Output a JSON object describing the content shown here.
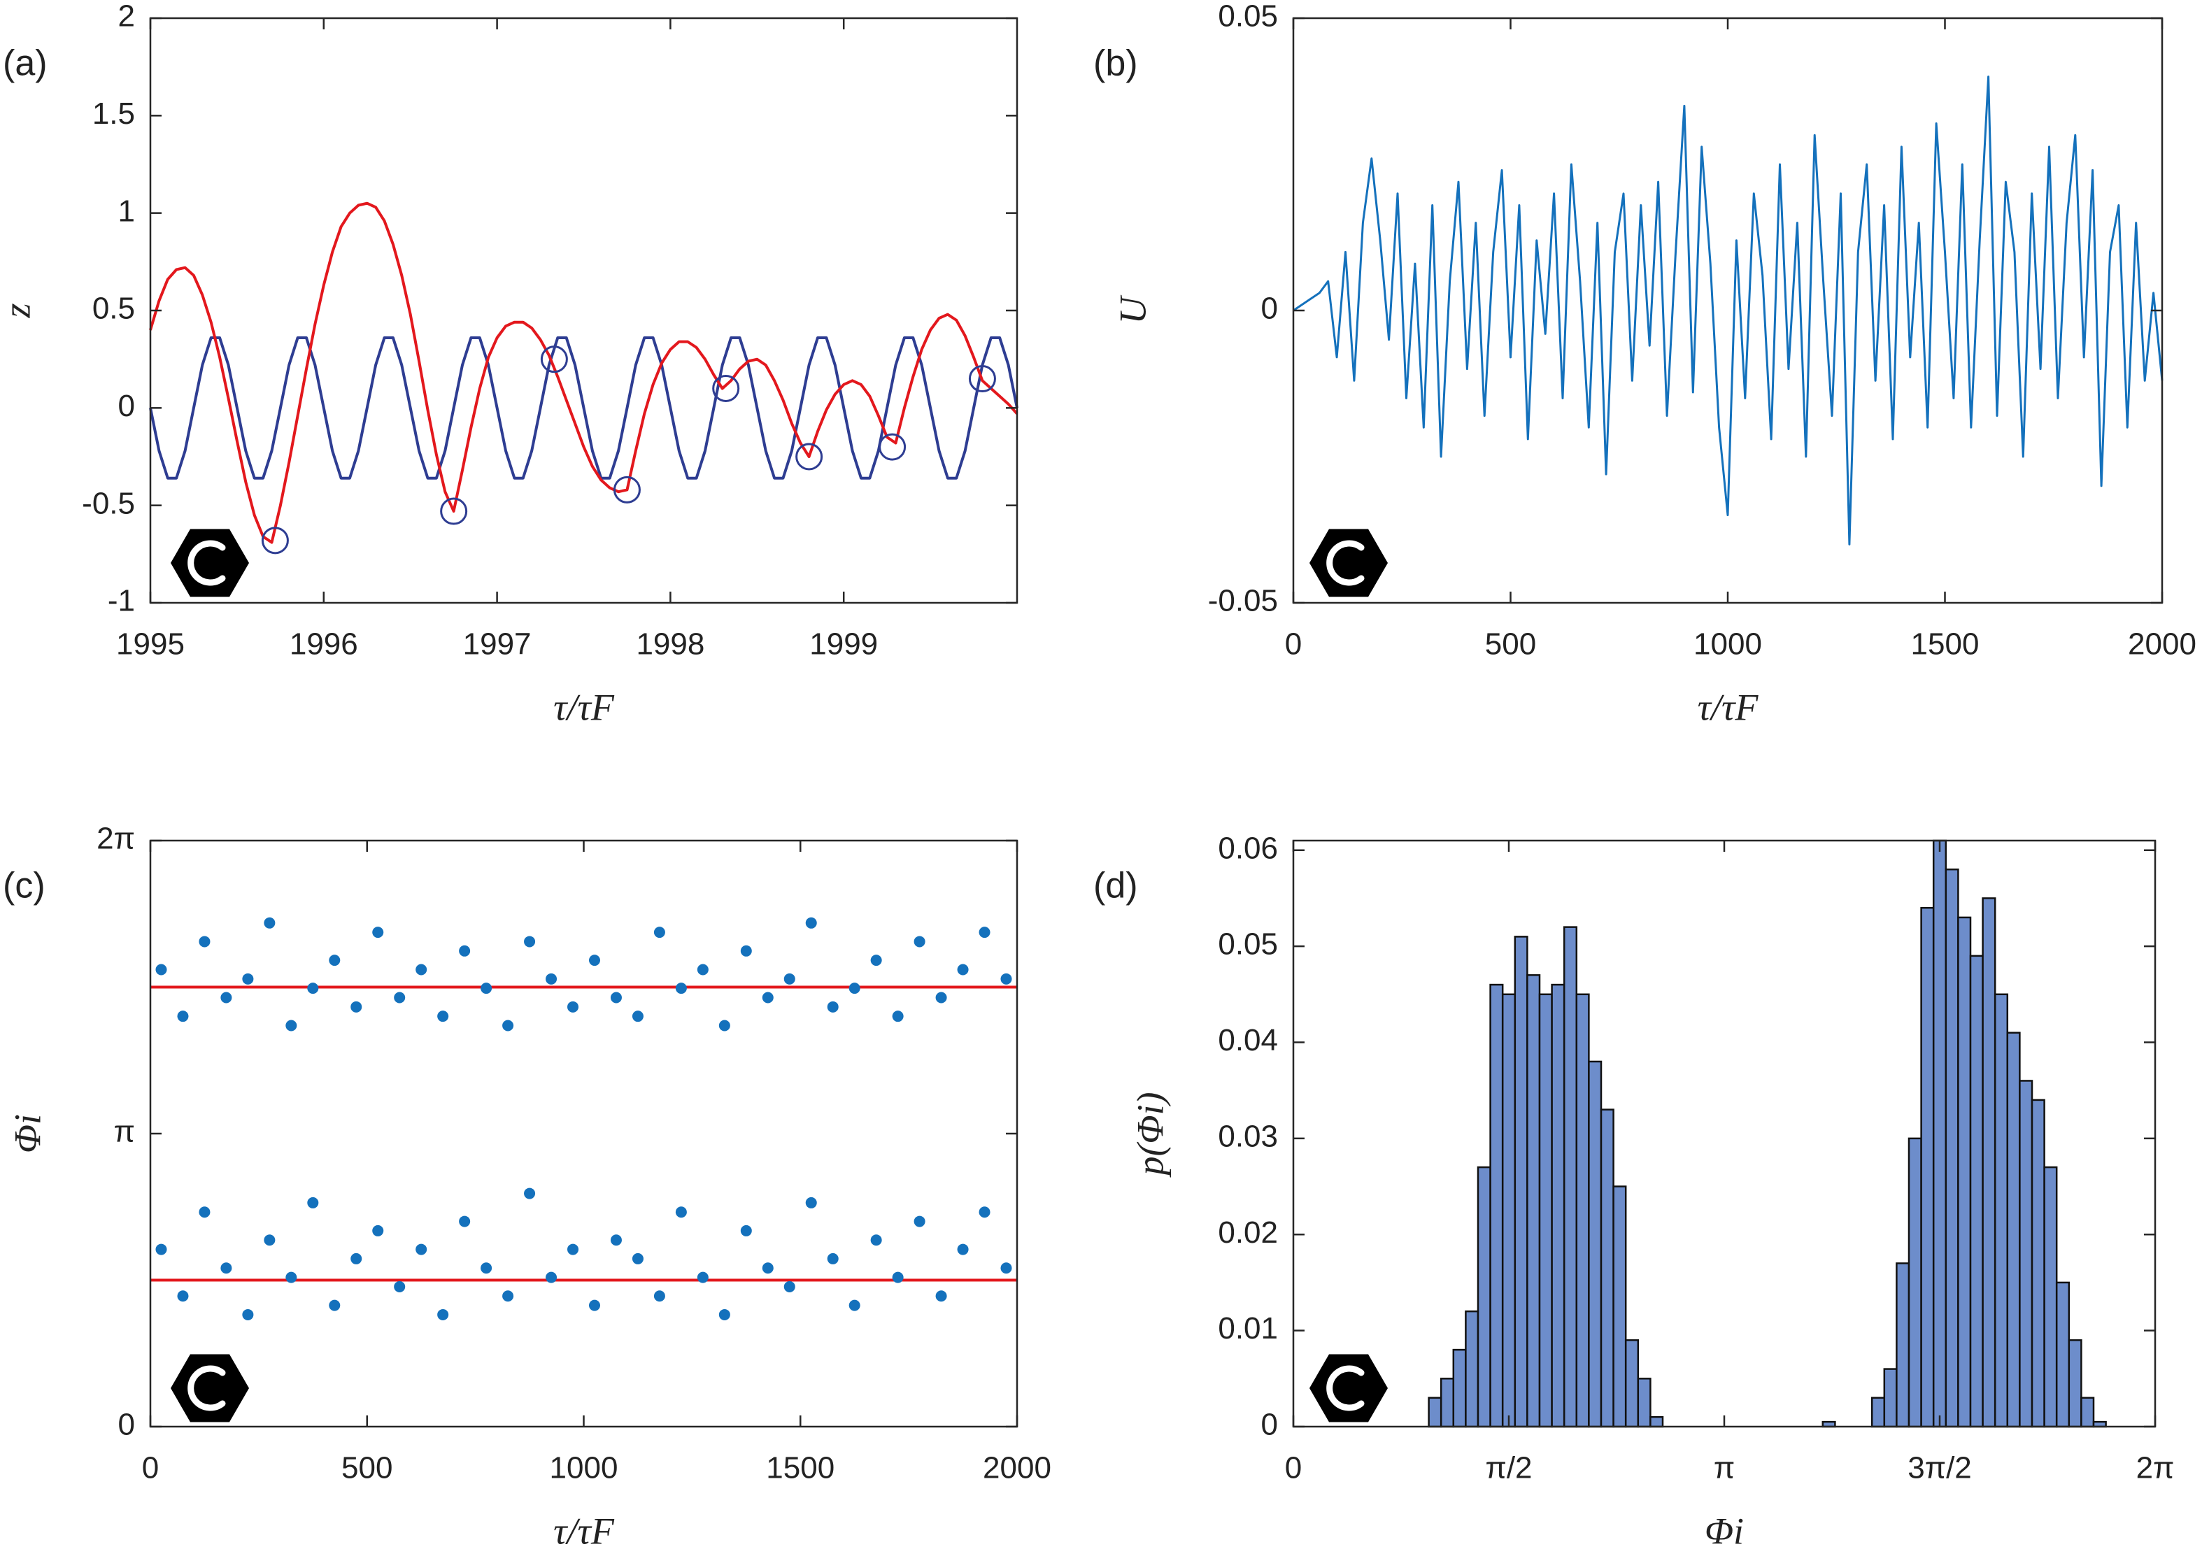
{
  "chart_data": [
    {
      "type": "line",
      "panel_label": "(a)",
      "xlabel": "τ/τF",
      "ylabel": "z",
      "xlim": [
        1995,
        2000
      ],
      "ylim": [
        -1,
        2
      ],
      "xticks": [
        1995,
        1996,
        1997,
        1998,
        1999
      ],
      "yticks": [
        -1,
        -0.5,
        0,
        0.5,
        1,
        1.5,
        2
      ],
      "x": [
        1995,
        1995.05,
        1995.1,
        1995.15,
        1995.2,
        1995.25,
        1995.3,
        1995.35,
        1995.4,
        1995.45,
        1995.5,
        1995.55,
        1995.6,
        1995.65,
        1995.7,
        1995.75,
        1995.8,
        1995.85,
        1995.9,
        1995.95,
        1996,
        1996.05,
        1996.1,
        1996.15,
        1996.2,
        1996.25,
        1996.3,
        1996.35,
        1996.4,
        1996.45,
        1996.5,
        1996.55,
        1996.6,
        1996.65,
        1996.7,
        1996.75,
        1996.8,
        1996.85,
        1996.9,
        1996.95,
        1997,
        1997.05,
        1997.1,
        1997.15,
        1997.2,
        1997.25,
        1997.3,
        1997.35,
        1997.4,
        1997.45,
        1997.5,
        1997.55,
        1997.6,
        1997.65,
        1997.7,
        1997.75,
        1997.8,
        1997.85,
        1997.9,
        1997.95,
        1998,
        1998.05,
        1998.1,
        1998.15,
        1998.2,
        1998.25,
        1998.3,
        1998.35,
        1998.4,
        1998.45,
        1998.5,
        1998.55,
        1998.6,
        1998.65,
        1998.7,
        1998.75,
        1998.8,
        1998.85,
        1998.9,
        1998.95,
        1999,
        1999.05,
        1999.1,
        1999.15,
        1999.2,
        1999.25,
        1999.3,
        1999.35,
        1999.4,
        1999.45,
        1999.5,
        1999.55,
        1999.6,
        1999.65,
        1999.7,
        1999.75,
        1999.8,
        1999.85,
        1999.9,
        1999.95,
        2000
      ],
      "series": [
        {
          "color": "#2e3d92",
          "values": [
            0,
            -0.22,
            -0.36,
            -0.36,
            -0.22,
            0,
            0.22,
            0.36,
            0.36,
            0.22,
            0,
            -0.22,
            -0.36,
            -0.36,
            -0.22,
            0,
            0.22,
            0.36,
            0.36,
            0.22,
            0,
            -0.22,
            -0.36,
            -0.36,
            -0.22,
            0,
            0.22,
            0.36,
            0.36,
            0.22,
            0,
            -0.22,
            -0.36,
            -0.36,
            -0.22,
            0,
            0.22,
            0.36,
            0.36,
            0.22,
            0,
            -0.22,
            -0.36,
            -0.36,
            -0.22,
            0,
            0.22,
            0.36,
            0.36,
            0.22,
            0,
            -0.22,
            -0.36,
            -0.36,
            -0.22,
            0,
            0.22,
            0.36,
            0.36,
            0.22,
            0,
            -0.22,
            -0.36,
            -0.36,
            -0.22,
            0,
            0.22,
            0.36,
            0.36,
            0.22,
            0,
            -0.22,
            -0.36,
            -0.36,
            -0.22,
            0,
            0.22,
            0.36,
            0.36,
            0.22,
            0,
            -0.22,
            -0.36,
            -0.36,
            -0.22,
            0,
            0.22,
            0.36,
            0.36,
            0.22,
            0,
            -0.22,
            -0.36,
            -0.36,
            -0.22,
            0,
            0.22,
            0.36,
            0.36,
            0.22,
            0
          ]
        },
        {
          "color": "#e3181d",
          "values": [
            0.4,
            0.55,
            0.66,
            0.71,
            0.72,
            0.68,
            0.58,
            0.44,
            0.26,
            0.05,
            -0.17,
            -0.38,
            -0.55,
            -0.66,
            -0.69,
            -0.5,
            -0.28,
            -0.04,
            0.2,
            0.43,
            0.63,
            0.8,
            0.93,
            1.0,
            1.04,
            1.05,
            1.03,
            0.96,
            0.84,
            0.68,
            0.48,
            0.24,
            -0.01,
            -0.24,
            -0.43,
            -0.53,
            -0.32,
            -0.1,
            0.1,
            0.26,
            0.36,
            0.42,
            0.44,
            0.44,
            0.41,
            0.35,
            0.27,
            0.16,
            0.04,
            -0.08,
            -0.2,
            -0.3,
            -0.37,
            -0.41,
            -0.43,
            -0.42,
            -0.22,
            -0.03,
            0.12,
            0.23,
            0.3,
            0.34,
            0.34,
            0.31,
            0.25,
            0.17,
            0.1,
            0.14,
            0.2,
            0.24,
            0.25,
            0.22,
            0.14,
            0.04,
            -0.08,
            -0.18,
            -0.25,
            -0.12,
            -0.01,
            0.07,
            0.12,
            0.14,
            0.12,
            0.06,
            -0.04,
            -0.15,
            -0.18,
            0.0,
            0.16,
            0.3,
            0.4,
            0.46,
            0.48,
            0.45,
            0.37,
            0.26,
            0.14,
            0.1,
            0.06,
            0.02,
            -0.03
          ]
        },
        {
          "color": "#2e3d92",
          "marker": "circle",
          "x": [
            1995.72,
            1996.75,
            1997.33,
            1997.75,
            1998.32,
            1998.8,
            1999.28,
            1999.8
          ],
          "values": [
            -0.68,
            -0.53,
            0.25,
            -0.42,
            0.1,
            -0.25,
            -0.2,
            0.15
          ]
        }
      ]
    },
    {
      "type": "line",
      "panel_label": "(b)",
      "xlabel": "τ/τF",
      "ylabel": "U",
      "xlim": [
        0,
        2000
      ],
      "ylim": [
        -0.05,
        0.05
      ],
      "xticks": [
        0,
        500,
        1000,
        1500,
        2000
      ],
      "yticks": [
        -0.05,
        0,
        0.05
      ],
      "x": [
        0,
        20,
        40,
        60,
        80,
        100,
        120,
        140,
        160,
        180,
        200,
        220,
        240,
        260,
        280,
        300,
        320,
        340,
        360,
        380,
        400,
        420,
        440,
        460,
        480,
        500,
        520,
        540,
        560,
        580,
        600,
        620,
        640,
        660,
        680,
        700,
        720,
        740,
        760,
        780,
        800,
        820,
        840,
        860,
        880,
        900,
        920,
        940,
        960,
        980,
        1000,
        1020,
        1040,
        1060,
        1080,
        1100,
        1120,
        1140,
        1160,
        1180,
        1200,
        1220,
        1240,
        1260,
        1280,
        1300,
        1320,
        1340,
        1360,
        1380,
        1400,
        1420,
        1440,
        1460,
        1480,
        1500,
        1520,
        1540,
        1560,
        1580,
        1600,
        1620,
        1640,
        1660,
        1680,
        1700,
        1720,
        1740,
        1760,
        1780,
        1800,
        1820,
        1840,
        1860,
        1880,
        1900,
        1920,
        1940,
        1960,
        1980,
        2000
      ],
      "series": [
        {
          "color": "#1471bc",
          "values": [
            0,
            0.001,
            0.002,
            0.003,
            0.005,
            -0.008,
            0.01,
            -0.012,
            0.015,
            0.026,
            0.012,
            -0.005,
            0.02,
            -0.015,
            0.008,
            -0.02,
            0.018,
            -0.025,
            0.005,
            0.022,
            -0.01,
            0.015,
            -0.018,
            0.01,
            0.024,
            -0.008,
            0.018,
            -0.022,
            0.012,
            -0.004,
            0.02,
            -0.015,
            0.025,
            0.005,
            -0.02,
            0.015,
            -0.028,
            0.01,
            0.02,
            -0.012,
            0.018,
            -0.006,
            0.022,
            -0.018,
            0.01,
            0.035,
            -0.014,
            0.028,
            0.008,
            -0.02,
            -0.035,
            0.012,
            -0.015,
            0.02,
            0.006,
            -0.022,
            0.025,
            -0.01,
            0.015,
            -0.025,
            0.03,
            0.005,
            -0.018,
            0.02,
            -0.04,
            0.01,
            0.025,
            -0.012,
            0.018,
            -0.022,
            0.028,
            -0.008,
            0.015,
            -0.02,
            0.032,
            0.01,
            -0.015,
            0.025,
            -0.02,
            0.012,
            0.04,
            -0.018,
            0.022,
            0.01,
            -0.025,
            0.02,
            -0.01,
            0.028,
            -0.015,
            0.015,
            0.03,
            -0.008,
            0.024,
            -0.03,
            0.01,
            0.018,
            -0.02,
            0.015,
            -0.012,
            0.003,
            -0.012
          ]
        }
      ]
    },
    {
      "type": "scatter",
      "panel_label": "(c)",
      "xlabel": "τ/τF",
      "ylabel": "Φi",
      "xlim": [
        0,
        2000
      ],
      "ylim": [
        0,
        6.2832
      ],
      "xticks": [
        0,
        500,
        1000,
        1500,
        2000
      ],
      "yticks": [
        0,
        {
          "value": 3.1416,
          "label": "π"
        },
        {
          "value": 6.2832,
          "label": "2π"
        }
      ],
      "hlines": [
        {
          "value": 1.5708,
          "color": "#e3181d"
        },
        {
          "value": 4.7124,
          "color": "#e3181d"
        }
      ],
      "x": [
        25,
        75,
        125,
        175,
        225,
        275,
        325,
        375,
        425,
        475,
        525,
        575,
        625,
        675,
        725,
        775,
        825,
        875,
        925,
        975,
        1025,
        1075,
        1125,
        1175,
        1225,
        1275,
        1325,
        1375,
        1425,
        1475,
        1525,
        1575,
        1625,
        1675,
        1725,
        1775,
        1825,
        1875,
        1925,
        1975
      ],
      "series": [
        {
          "color": "#1471bc",
          "values": [
            4.9,
            4.4,
            5.2,
            4.6,
            4.8,
            5.4,
            4.3,
            4.7,
            5.0,
            4.5,
            5.3,
            4.6,
            4.9,
            4.4,
            5.1,
            4.7,
            4.3,
            5.2,
            4.8,
            4.5,
            5.0,
            4.6,
            4.4,
            5.3,
            4.7,
            4.9,
            4.3,
            5.1,
            4.6,
            4.8,
            5.4,
            4.5,
            4.7,
            5.0,
            4.4,
            5.2,
            4.6,
            4.9,
            5.3,
            4.8
          ]
        },
        {
          "color": "#1471bc",
          "values": [
            1.9,
            1.4,
            2.3,
            1.7,
            1.2,
            2.0,
            1.6,
            2.4,
            1.3,
            1.8,
            2.1,
            1.5,
            1.9,
            1.2,
            2.2,
            1.7,
            1.4,
            2.5,
            1.6,
            1.9,
            1.3,
            2.0,
            1.8,
            1.4,
            2.3,
            1.6,
            1.2,
            2.1,
            1.7,
            1.5,
            2.4,
            1.8,
            1.3,
            2.0,
            1.6,
            2.2,
            1.4,
            1.9,
            2.3,
            1.7
          ]
        }
      ]
    },
    {
      "type": "histogram",
      "panel_label": "(d)",
      "xlabel": "Φi",
      "ylabel": "p(Φi)",
      "color": "#6d8dcb",
      "xlim": [
        0,
        6.2832
      ],
      "ylim": [
        0,
        0.061
      ],
      "xticks": [
        0,
        {
          "value": 1.5708,
          "label": "π/2"
        },
        {
          "value": 3.1416,
          "label": "π"
        },
        {
          "value": 4.7124,
          "label": "3π/2"
        },
        {
          "value": 6.2832,
          "label": "2π"
        }
      ],
      "yticks": [
        0,
        0.01,
        0.02,
        0.03,
        0.04,
        0.05,
        0.06
      ],
      "bins": [
        0,
        0.0898,
        0.1795,
        0.2693,
        0.359,
        0.4488,
        0.5386,
        0.6283,
        0.7181,
        0.8078,
        0.8976,
        0.9874,
        1.0771,
        1.1669,
        1.2566,
        1.3464,
        1.4362,
        1.5259,
        1.6157,
        1.7054,
        1.7952,
        1.885,
        1.9747,
        2.0645,
        2.1542,
        2.244,
        2.3338,
        2.4235,
        2.5133,
        2.603,
        2.6928,
        2.7826,
        2.8723,
        2.9621,
        3.0518,
        3.1416,
        3.2314,
        3.3211,
        3.4109,
        3.5006,
        3.5904,
        3.6802,
        3.7699,
        3.8597,
        3.9494,
        4.0392,
        4.129,
        4.2187,
        4.3085,
        4.3982,
        4.488,
        4.5778,
        4.6675,
        4.7573,
        4.847,
        4.9368,
        5.0265,
        5.1163,
        5.2061,
        5.2958,
        5.3856,
        5.4754,
        5.5651,
        5.6549,
        5.7446,
        5.8344,
        5.9242,
        6.0139,
        6.1037,
        6.1934,
        6.2832
      ],
      "values": [
        0,
        0,
        0,
        0,
        0,
        0,
        0,
        0,
        0,
        0,
        0,
        0.003,
        0.005,
        0.008,
        0.012,
        0.027,
        0.046,
        0.045,
        0.051,
        0.047,
        0.045,
        0.046,
        0.052,
        0.045,
        0.038,
        0.033,
        0.025,
        0.009,
        0.005,
        0.001,
        0,
        0,
        0,
        0,
        0,
        0,
        0,
        0,
        0,
        0,
        0,
        0,
        0,
        0.0005,
        0,
        0,
        0,
        0.003,
        0.006,
        0.017,
        0.03,
        0.054,
        0.061,
        0.058,
        0.053,
        0.049,
        0.055,
        0.045,
        0.041,
        0.036,
        0.034,
        0.027,
        0.015,
        0.009,
        0.003,
        0.0005,
        0,
        0,
        0,
        0
      ]
    }
  ]
}
